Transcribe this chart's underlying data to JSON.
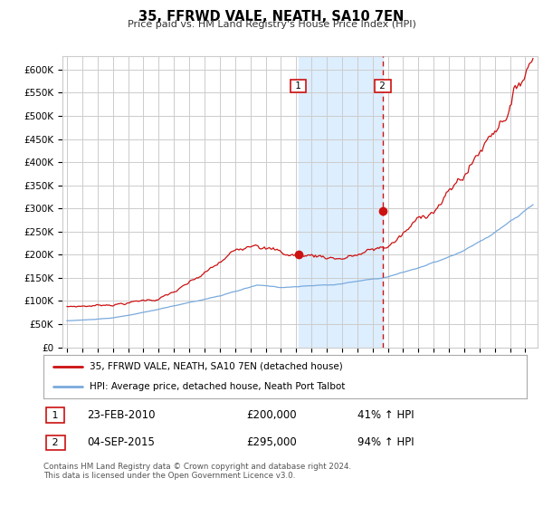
{
  "title": "35, FFRWD VALE, NEATH, SA10 7EN",
  "subtitle": "Price paid vs. HM Land Registry's House Price Index (HPI)",
  "sale1_date": "23-FEB-2010",
  "sale1_price": 200000,
  "sale1_label": "41% ↑ HPI",
  "sale1_year": 2010.14,
  "sale2_date": "04-SEP-2015",
  "sale2_price": 295000,
  "sale2_label": "94% ↑ HPI",
  "sale2_year": 2015.67,
  "legend_line1": "35, FFRWD VALE, NEATH, SA10 7EN (detached house)",
  "legend_line2": "HPI: Average price, detached house, Neath Port Talbot",
  "footer": "Contains HM Land Registry data © Crown copyright and database right 2024.\nThis data is licensed under the Open Government Licence v3.0.",
  "hpi_color": "#7aaadd",
  "price_color": "#cc1111",
  "bg_color": "#ffffff",
  "grid_color": "#cccccc",
  "shade_color": "#ddeeff",
  "ylim": [
    0,
    630000
  ],
  "yticks": [
    0,
    50000,
    100000,
    150000,
    200000,
    250000,
    300000,
    350000,
    400000,
    450000,
    500000,
    550000,
    600000
  ],
  "xlim_start": 1994.7,
  "xlim_end": 2025.8
}
